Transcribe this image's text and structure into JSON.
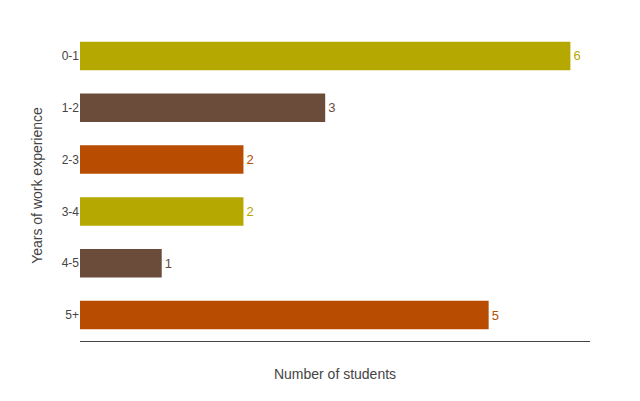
{
  "chart_data": {
    "type": "bar",
    "orientation": "horizontal",
    "xlabel": "Number of students",
    "ylabel": "Years of work experience",
    "categories": [
      "0-1",
      "1-2",
      "2-3",
      "3-4",
      "4-5",
      "5+"
    ],
    "values": [
      6,
      3,
      2,
      2,
      1,
      5
    ],
    "colors": [
      "#b5a800",
      "#6b4c3b",
      "#b84c00",
      "#b5a800",
      "#6b4c3b",
      "#b84c00"
    ],
    "xlim": [
      0,
      6.24
    ],
    "xticks": [],
    "tick_labels": "y",
    "data_labels": true,
    "grid": false
  }
}
